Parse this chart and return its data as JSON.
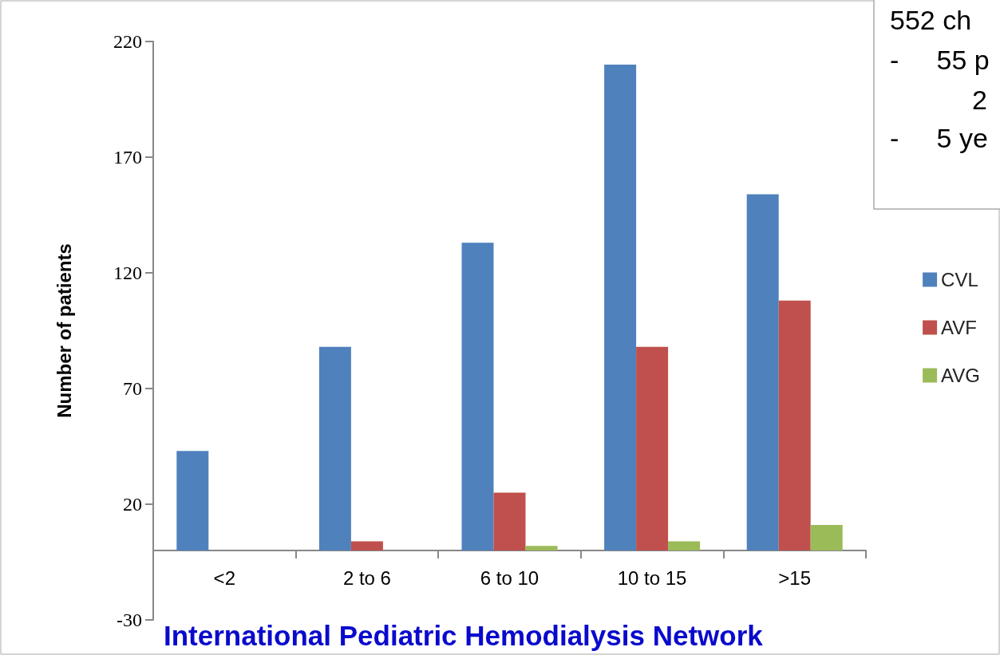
{
  "chart_data": {
    "type": "bar",
    "subtitle": "International Pediatric Hemodialysis Network",
    "ylabel": "Number of patients",
    "annotations": [
      "552 ch",
      "-     55 p",
      "2",
      "-     5 ye"
    ],
    "categories": [
      "<2",
      "2 to 6",
      "6 to 10",
      "10 to 15",
      ">15"
    ],
    "series": [
      {
        "name": "CVL",
        "color": "#4f81bd",
        "values": [
          43,
          88,
          133,
          210,
          154
        ]
      },
      {
        "name": "AVF",
        "color": "#c0504d",
        "values": [
          0,
          4,
          25,
          88,
          108
        ]
      },
      {
        "name": "AVG",
        "color": "#9bbb59",
        "values": [
          0,
          0,
          2,
          4,
          11
        ]
      }
    ],
    "ylim": [
      -30,
      220
    ],
    "yticks": [
      -30,
      20,
      70,
      120,
      170,
      220
    ],
    "grid": false,
    "legend": "right"
  }
}
